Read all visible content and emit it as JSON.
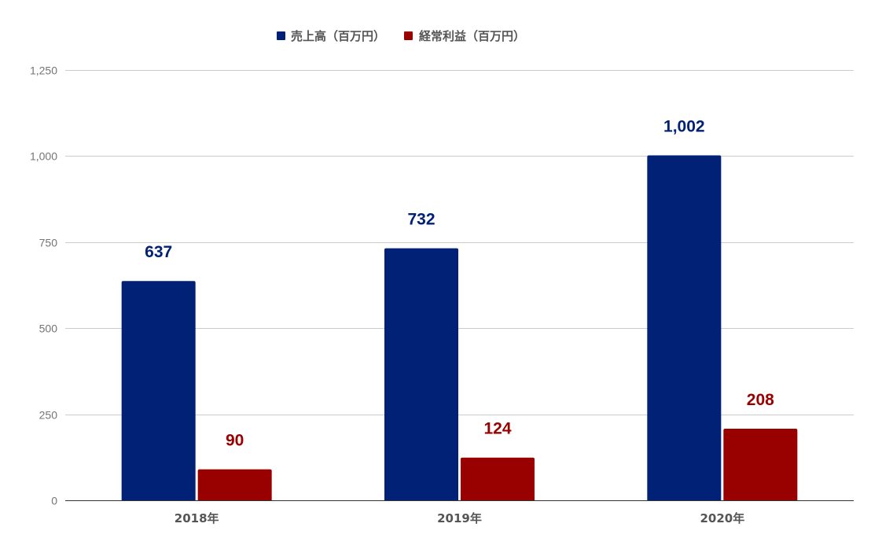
{
  "chart_data": {
    "type": "bar",
    "title": "",
    "xlabel": "",
    "ylabel": "",
    "categories": [
      "2018年",
      "2019年",
      "2020年"
    ],
    "series": [
      {
        "name": "売上高（百万円）",
        "values": [
          637,
          732,
          1002
        ],
        "labels": [
          "637",
          "732",
          "1,002"
        ],
        "color": "#002176"
      },
      {
        "name": "経常利益（百万円）",
        "values": [
          90,
          124,
          208
        ],
        "labels": [
          "90",
          "124",
          "208"
        ],
        "color": "#990000"
      }
    ],
    "ylim": [
      0,
      1250
    ],
    "yticks": [
      0,
      250,
      500,
      750,
      1000,
      1250
    ],
    "ytick_labels": [
      "0",
      "250",
      "500",
      "750",
      "1,000",
      "1,250"
    ],
    "grid": true,
    "legend_position": "top-center",
    "gridline_color": "#cccccc",
    "axis_color": "#333333"
  }
}
